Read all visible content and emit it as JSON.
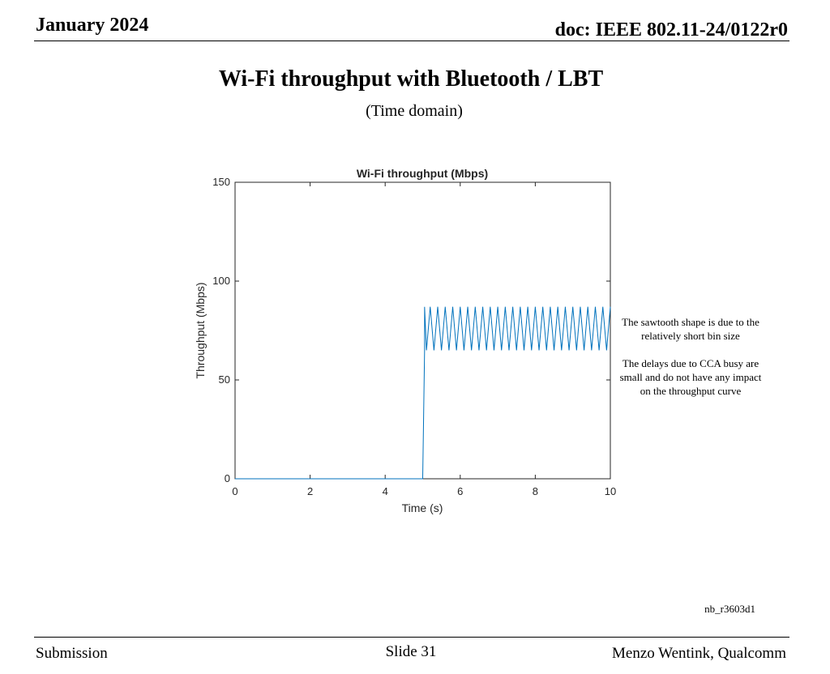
{
  "header": {
    "date": "January 2024",
    "doc": "doc: IEEE 802.11-24/0122r0"
  },
  "slide": {
    "title": "Wi-Fi throughput with Bluetooth / LBT",
    "subtitle": "(Time domain)"
  },
  "note": {
    "line1": "The sawtooth shape is due to the relatively short bin size",
    "line2": "The delays due to CCA busy are small and do not have any impact on the throughput curve"
  },
  "ref": "nb_r3603d1",
  "footer": {
    "left": "Submission",
    "center": "Slide 31",
    "right": "Menzo Wentink, Qualcomm"
  },
  "chart_data": {
    "type": "line",
    "title": "Wi-Fi throughput (Mbps)",
    "xlabel": "Time (s)",
    "ylabel": "Throughput (Mbps)",
    "xlim": [
      0,
      10
    ],
    "ylim": [
      0,
      150
    ],
    "xticks": [
      0,
      2,
      4,
      6,
      8,
      10
    ],
    "yticks": [
      0,
      50,
      100,
      150
    ],
    "grid": false,
    "color": "#0072BD",
    "series": [
      {
        "x": [
          0,
          5.0,
          5.05,
          5.05,
          5.1,
          5.2,
          5.3,
          5.4,
          5.5,
          5.6,
          5.7,
          5.8,
          5.9,
          6.0,
          6.1,
          6.2,
          6.3,
          6.4,
          6.5,
          6.6,
          6.7,
          6.8,
          6.9,
          7.0,
          7.1,
          7.2,
          7.3,
          7.4,
          7.5,
          7.6,
          7.7,
          7.8,
          7.9,
          8.0,
          8.1,
          8.2,
          8.3,
          8.4,
          8.5,
          8.6,
          8.7,
          8.8,
          8.9,
          9.0,
          9.1,
          9.2,
          9.3,
          9.4,
          9.5,
          9.6,
          9.7,
          9.8,
          9.9,
          10.0
        ],
        "y": [
          0,
          0,
          65,
          87,
          65,
          87,
          65,
          87,
          65,
          87,
          65,
          87,
          65,
          87,
          65,
          87,
          65,
          87,
          65,
          87,
          65,
          87,
          65,
          87,
          65,
          87,
          65,
          87,
          65,
          87,
          65,
          87,
          65,
          87,
          65,
          87,
          65,
          87,
          65,
          87,
          65,
          87,
          65,
          87,
          65,
          87,
          65,
          87,
          65,
          87,
          65,
          87,
          65,
          87
        ]
      }
    ]
  }
}
